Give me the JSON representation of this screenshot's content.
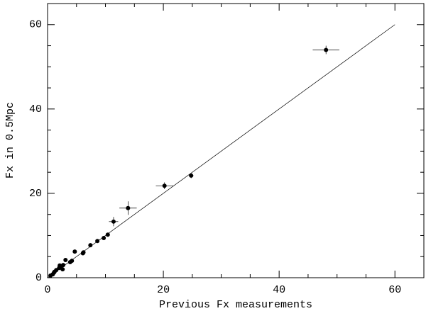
{
  "chart_data": {
    "type": "scatter",
    "x_label": "Previous Fx measurements",
    "y_label": "Fx in 0.5Mpc",
    "xlim": [
      0,
      65
    ],
    "ylim": [
      0,
      65
    ],
    "xticks": [
      0,
      20,
      40,
      60
    ],
    "yticks": [
      0,
      20,
      40,
      60
    ],
    "xminorticks": [
      5,
      10,
      15,
      25,
      30,
      35,
      45,
      50,
      55
    ],
    "yminorticks": [
      5,
      10,
      15,
      25,
      30,
      35,
      45,
      50,
      55
    ],
    "color": "#000000",
    "reference_line": {
      "x": [
        0,
        60
      ],
      "y": [
        0,
        60
      ]
    },
    "x": [
      48.1,
      24.8,
      20.2,
      13.9,
      11.4,
      10.4,
      9.7,
      8.6,
      7.4,
      6.2,
      6.1,
      4.7,
      4.2,
      3.9,
      3.1,
      2.7,
      2.3,
      2.0,
      2.6,
      2.1,
      1.5,
      1.2,
      0.9,
      0.5,
      1.1
    ],
    "y": [
      54.0,
      24.2,
      21.8,
      16.5,
      13.3,
      10.2,
      9.4,
      8.7,
      7.7,
      6.0,
      5.8,
      6.2,
      4.0,
      3.7,
      4.2,
      3.0,
      2.4,
      2.3,
      2.0,
      2.9,
      1.8,
      1.4,
      0.8,
      0.5,
      1.2
    ],
    "xerr": [
      2.3,
      0.4,
      1.5,
      1.5,
      0.8,
      null,
      null,
      null,
      null,
      null,
      null,
      null,
      null,
      null,
      null,
      null,
      null,
      null,
      null,
      null,
      null,
      null,
      null,
      null,
      null
    ],
    "yerr": [
      1.0,
      0.6,
      0.8,
      1.6,
      1.1,
      null,
      null,
      null,
      null,
      null,
      null,
      null,
      null,
      null,
      null,
      null,
      null,
      null,
      null,
      null,
      null,
      null,
      null,
      null,
      null
    ]
  }
}
